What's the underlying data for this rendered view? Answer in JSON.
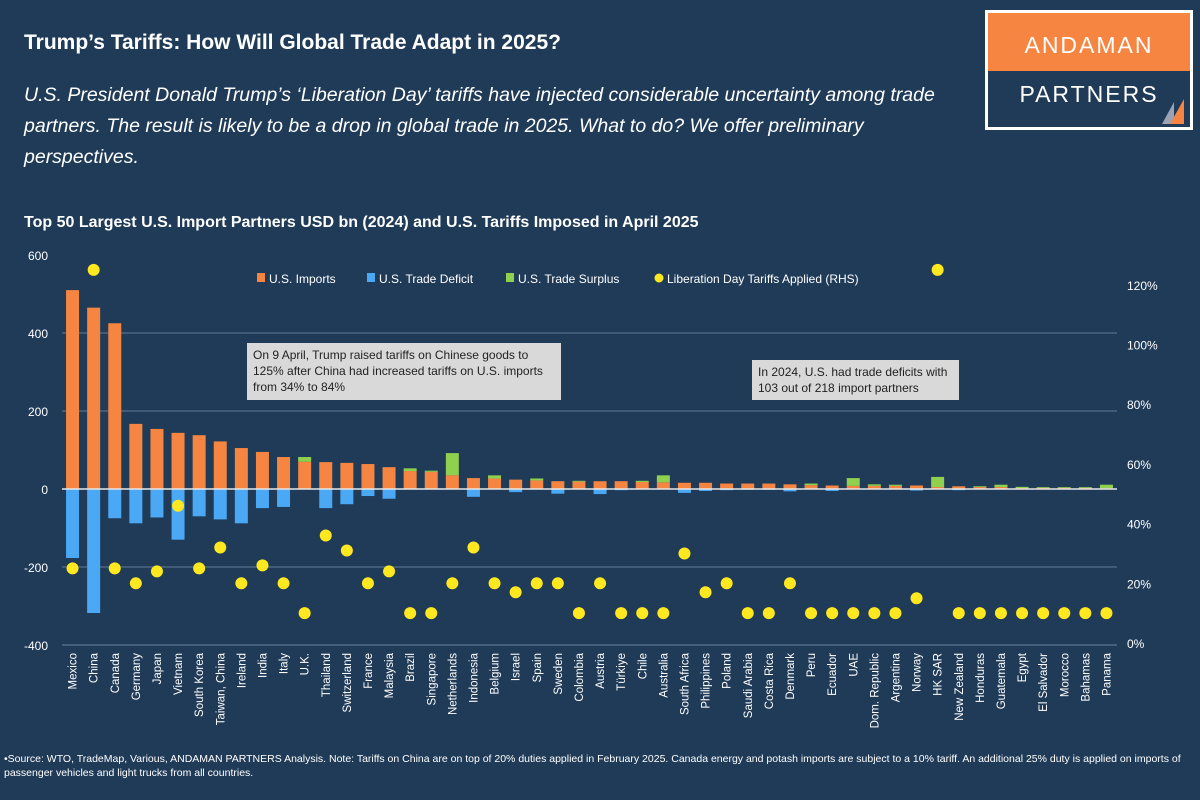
{
  "header": {
    "title": "Trump’s Tariffs: How Will Global Trade Adapt in 2025?",
    "subtitle": "U.S. President Donald Trump’s ‘Liberation Day’ tariffs have injected considerable uncertainty among trade partners. The result is likely to be a drop in global trade in 2025. What to do? We offer preliminary perspectives."
  },
  "logo": {
    "line1": "ANDAMAN",
    "line2": "PARTNERS"
  },
  "footer": "•Source: WTO, TradeMap, Various, ANDAMAN PARTNERS Analysis. Note: Tariffs on China are on top of 20% duties applied in February 2025. Canada energy and potash imports are subject to a 10% tariff. An additional 25% duty is applied on imports of passenger vehicles and light trucks from all countries.",
  "colors": {
    "background": "#1f3b58",
    "imports": "#f58540",
    "deficit": "#4aa8f5",
    "surplus": "#8fd14f",
    "tariff": "#ffe81f"
  },
  "chart_data": {
    "type": "bar",
    "title": "Top 50 Largest U.S. Import Partners USD bn (2024) and U.S. Tariffs Imposed in April 2025",
    "ylim": [
      -400,
      600
    ],
    "y_ticks": [
      600,
      400,
      200,
      0,
      -200,
      -400
    ],
    "y2lim": [
      0,
      130
    ],
    "y2_ticks": [
      "0%",
      "20%",
      "40%",
      "60%",
      "80%",
      "100%",
      "120%"
    ],
    "grid": true,
    "legend_placement": "top",
    "categories": [
      "Mexico",
      "China",
      "Canada",
      "Germany",
      "Japan",
      "Vietnam",
      "South Korea",
      "Taiwan, China",
      "Ireland",
      "India",
      "Italy",
      "U.K.",
      "Thailand",
      "Switzerland",
      "France",
      "Malaysia",
      "Brazil",
      "Singapore",
      "Netherlands",
      "Indonesia",
      "Belgium",
      "Israel",
      "Spain",
      "Sweden",
      "Colombia",
      "Austria",
      "Türkiye",
      "Chile",
      "Australia",
      "South Africa",
      "Philippines",
      "Poland",
      "Saudi Arabia",
      "Costa Rica",
      "Denmark",
      "Peru",
      "Ecuador",
      "UAE",
      "Dom. Republic",
      "Argentina",
      "Norway",
      "HK SAR",
      "New Zealand",
      "Honduras",
      "Guatemala",
      "Egypt",
      "El Salvador",
      "Morocco",
      "Bahamas",
      "Panama"
    ],
    "series": [
      {
        "name": "U.S. Imports",
        "type": "bar",
        "axis": "left",
        "values": [
          510,
          465,
          425,
          167,
          154,
          144,
          138,
          122,
          105,
          95,
          82,
          70,
          69,
          67,
          64,
          56,
          46,
          44,
          35,
          28,
          27,
          24,
          22,
          20,
          19,
          20,
          20,
          18,
          17,
          16,
          16,
          14,
          14,
          14,
          12,
          10,
          9,
          8,
          8,
          8,
          9,
          5,
          7,
          5,
          5,
          2.5,
          3,
          3,
          3,
          2
        ]
      },
      {
        "name": "U.S. Trade Deficit",
        "type": "bar",
        "axis": "left",
        "values": [
          -177,
          -318,
          -75,
          -88,
          -73,
          -130,
          -70,
          -78,
          -88,
          -49,
          -46,
          0,
          -49,
          -39,
          -18,
          -25,
          0,
          0,
          0,
          -20,
          0,
          -8,
          0,
          -12,
          0,
          -13,
          -3,
          0,
          0,
          -10,
          -5,
          -3,
          -2,
          -2,
          -6,
          0,
          -5,
          0,
          0,
          0,
          -4,
          0,
          -3,
          0,
          0,
          0,
          0,
          0,
          0,
          0
        ]
      },
      {
        "name": "U.S. Trade Surplus",
        "type": "bar",
        "axis": "left",
        "values": [
          0,
          0,
          0,
          0,
          0,
          0,
          0,
          0,
          0,
          0,
          0,
          12,
          0,
          0,
          0,
          0,
          7,
          3,
          57,
          0,
          8,
          0,
          5,
          0,
          2,
          0,
          0,
          3,
          18,
          0,
          0,
          0,
          0,
          0,
          0,
          4,
          0,
          20,
          4,
          3,
          0,
          26,
          0,
          2,
          6,
          3,
          2,
          2,
          2,
          9
        ]
      },
      {
        "name": "Liberation Day Tariffs Applied (RHS)",
        "type": "scatter",
        "axis": "right",
        "unit": "%",
        "values": [
          25,
          125,
          25,
          20,
          24,
          46,
          25,
          32,
          20,
          26,
          20,
          10,
          36,
          31,
          20,
          24,
          10,
          10,
          20,
          32,
          20,
          17,
          20,
          20,
          10,
          20,
          10,
          10,
          10,
          30,
          17,
          20,
          10,
          10,
          20,
          10,
          10,
          10,
          10,
          10,
          15,
          125,
          10,
          10,
          10,
          10,
          10,
          10,
          10,
          10
        ]
      }
    ],
    "annotations": [
      "On 9 April, Trump raised tariffs on Chinese goods to 125% after China had increased tariffs on U.S. imports from 34% to 84%",
      "In 2024, U.S. had trade deficits with 103 out of 218 import partners"
    ]
  }
}
